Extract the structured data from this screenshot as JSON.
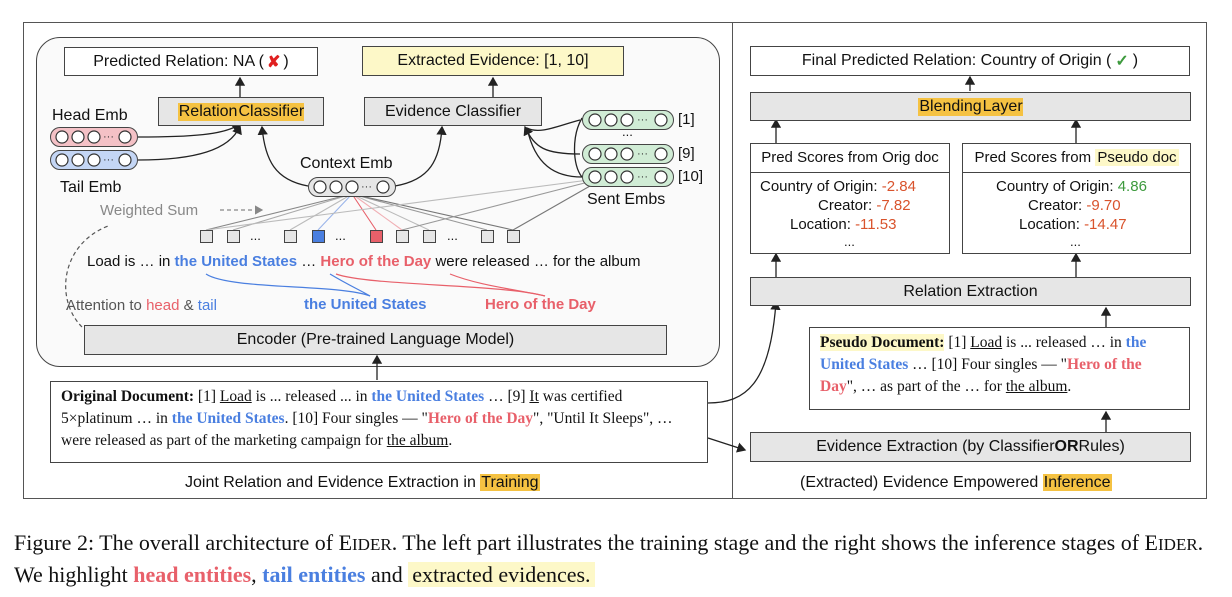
{
  "colors": {
    "head": "#e8606a",
    "tail": "#4a7fe0",
    "highlight_orange": "#f5c242",
    "highlight_yellow": "#fdf8c8",
    "neg_score": "#d9532c",
    "pos_score": "#3d9a3d"
  },
  "left": {
    "predicted_relation": "Predicted Relation: NA (",
    "predicted_relation_end": ")",
    "predicted_mark": "✘",
    "extracted_evidence": "Extracted Evidence: [1, 10]",
    "relation_classifier_a": "Relation",
    "relation_classifier_b": " Classifier",
    "evidence_classifier": "Evidence Classifier",
    "head_emb": "Head Emb",
    "tail_emb": "Tail Emb",
    "context_emb": "Context Emb",
    "sent_embs": "Sent Embs",
    "sent_labels": [
      "[1]",
      "...",
      "[9]",
      "[10]"
    ],
    "weighted_sum": "Weighted Sum",
    "sentence": {
      "p1": "Load is … in ",
      "tail": "the United States",
      "p2": " …  ",
      "head": "Hero of the Day",
      "p3": " were released … for the album"
    },
    "tail_label": "the United States",
    "head_label": "Hero of the Day",
    "attention": {
      "p1": "Attention to ",
      "head": "head",
      "amp": " & ",
      "tail": "tail"
    },
    "encoder": "Encoder (Pre-trained Language Model)",
    "footer": "Joint Relation and Evidence Extraction in ",
    "footer_hl": "Training"
  },
  "original_doc": {
    "title": "Original Document:",
    "s1": " [1] ",
    "load": "Load",
    "s2": " is ... released ... in ",
    "us1": "the United States",
    "s3": " … [9] ",
    "it": "It",
    "s4": " was certified 5×platinum … in ",
    "us2": "the United States",
    "s5": ". [10] Four singles — \"",
    "hero": "Hero of the Day",
    "s6": "\", \"Until It Sleeps\",  … were released as part of the marketing campaign for ",
    "album": "the album",
    "s7": "."
  },
  "right": {
    "final_relation": "Final Predicted Relation: Country of Origin (",
    "final_relation_end": ")",
    "final_mark": "✓",
    "blending_a": "Blending",
    "blending_b": " Layer",
    "orig_title": "Pred Scores from Orig doc",
    "pseudo_title_a": "Pred Scores from ",
    "pseudo_title_b": "Pseudo doc",
    "orig_scores": [
      {
        "label": "Country of Origin:",
        "value": "-2.84"
      },
      {
        "label": "Creator:",
        "value": "-7.82"
      },
      {
        "label": "Location:",
        "value": "-11.53"
      }
    ],
    "pseudo_scores": [
      {
        "label": "Country of Origin:",
        "value": "4.86"
      },
      {
        "label": "Creator:",
        "value": "-9.70"
      },
      {
        "label": "Location:",
        "value": "-14.47"
      }
    ],
    "ellipsis": "...",
    "relation_extraction": "Relation Extraction",
    "evidence_extraction_a": "Evidence Extraction (by Classifier ",
    "evidence_extraction_or": "OR",
    "evidence_extraction_b": " Rules)",
    "footer": "(Extracted) Evidence Empowered ",
    "footer_hl": "Inference"
  },
  "pseudo_doc": {
    "title": "Pseudo Document:",
    "s1": " [1] ",
    "load": "Load",
    "s2": " is ... released … in ",
    "us": "the United States",
    "s3": " … [10] Four singles — \"",
    "hero": "Hero of the Day",
    "s4": "\", … as part of the … for ",
    "album": "the album",
    "s5": "."
  },
  "caption": {
    "p1": "Figure 2: The overall architecture of E",
    "sc1": "IDER",
    "p2": ". The left part illustrates the training stage and the right shows the inference stages of E",
    "sc2": "IDER",
    "p3": ". We highlight ",
    "head": "head entities",
    "p4": ", ",
    "tail": "tail entities",
    "p5": " and ",
    "hl": "extracted evidences."
  }
}
